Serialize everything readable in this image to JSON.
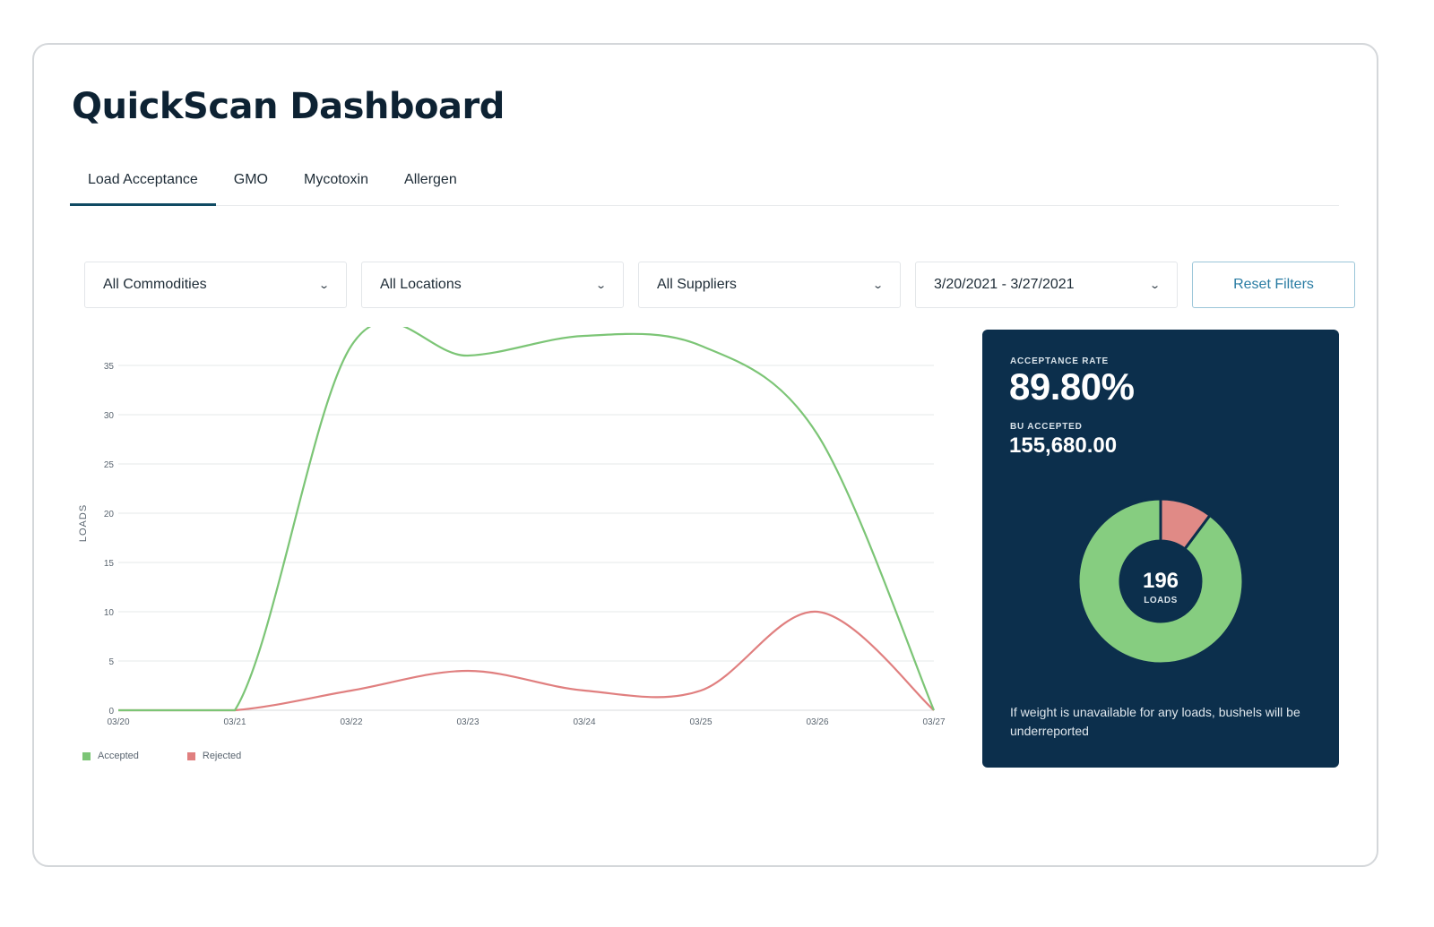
{
  "page": {
    "title": "QuickScan Dashboard"
  },
  "tabs": [
    {
      "label": "Load Acceptance",
      "active": true
    },
    {
      "label": "GMO",
      "active": false
    },
    {
      "label": "Mycotoxin",
      "active": false
    },
    {
      "label": "Allergen",
      "active": false
    }
  ],
  "filters": {
    "commodity": "All Commodities",
    "location": "All Locations",
    "supplier": "All Suppliers",
    "date_range": "3/20/2021 - 3/27/2021",
    "reset_label": "Reset Filters"
  },
  "chart_data": {
    "type": "line",
    "x": [
      "03/20",
      "03/21",
      "03/22",
      "03/23",
      "03/24",
      "03/25",
      "03/26",
      "03/27"
    ],
    "series": [
      {
        "name": "Accepted",
        "color": "#7cc576",
        "values": [
          0,
          0,
          37,
          36,
          38,
          37,
          28,
          0
        ]
      },
      {
        "name": "Rejected",
        "color": "#e07f7f",
        "values": [
          0,
          0,
          2,
          4,
          2,
          2,
          10,
          0
        ]
      }
    ],
    "ylabel": "LOADS",
    "yticks": [
      0,
      5,
      10,
      15,
      20,
      25,
      30,
      35
    ],
    "ylim": [
      0,
      38
    ],
    "grid": true,
    "legend": "bottom-left"
  },
  "stats": {
    "acceptance_label": "ACCEPTANCE RATE",
    "acceptance_rate": "89.80%",
    "bu_label": "BU ACCEPTED",
    "bu_accepted": "155,680.00",
    "donut": {
      "total": "196",
      "unit": "LOADS",
      "accepted_fraction": 0.898,
      "accepted_color": "#86cd80",
      "rejected_color": "#e08a86"
    },
    "note": "If weight is unavailable for any loads, bushels will be underreported"
  }
}
